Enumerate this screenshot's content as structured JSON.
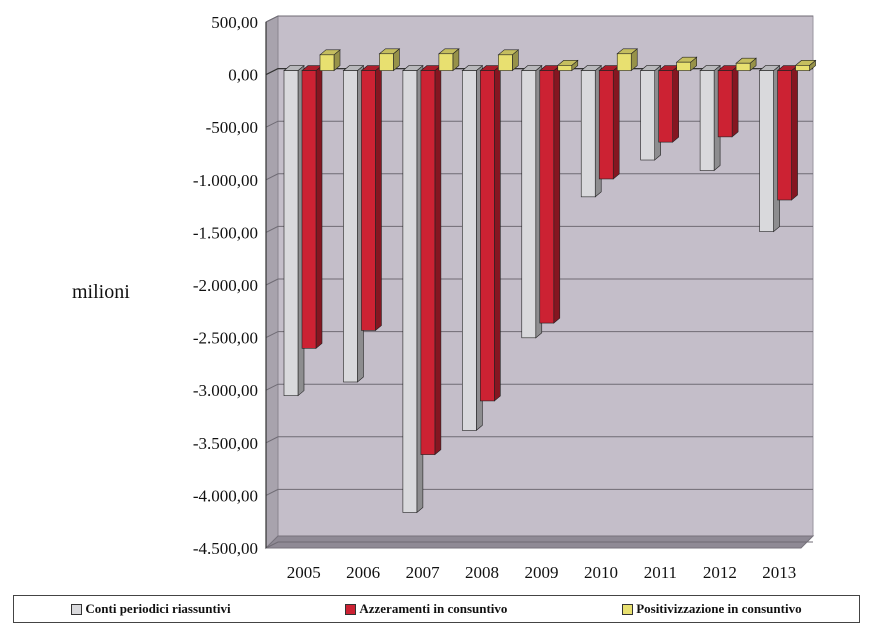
{
  "chart_data": {
    "type": "bar",
    "title": "",
    "xlabel": "",
    "ylabel": "milioni",
    "ylim": [
      -4500,
      500
    ],
    "yticks": [
      500,
      0,
      -500,
      -1000,
      -1500,
      -2000,
      -2500,
      -3000,
      -3500,
      -4000,
      -4500
    ],
    "ytick_labels": [
      "500,00",
      "0,00",
      "-500,00",
      "-1.000,00",
      "-1.500,00",
      "-2.000,00",
      "-2.500,00",
      "-3.000,00",
      "-3.500,00",
      "-4.000,00",
      "-4.500,00"
    ],
    "categories": [
      "2005",
      "2006",
      "2007",
      "2008",
      "2009",
      "2010",
      "2011",
      "2012",
      "2013"
    ],
    "grid": true,
    "legend_position": "bottom",
    "series": [
      {
        "name": "Conti periodici riassuntivi",
        "color": "#d9d9dc",
        "values": [
          -3090,
          -2960,
          -4200,
          -3420,
          -2540,
          -1200,
          -850,
          -950,
          -1530
        ]
      },
      {
        "name": "Azzeramenti in consuntivo",
        "color": "#cc2233",
        "values": [
          -2640,
          -2470,
          -3650,
          -3140,
          -2400,
          -1030,
          -680,
          -630,
          -1230
        ]
      },
      {
        "name": "Positivizzazione in consuntivo",
        "color": "#e8e070",
        "values": [
          150,
          160,
          160,
          150,
          50,
          160,
          80,
          70,
          50
        ]
      }
    ]
  }
}
